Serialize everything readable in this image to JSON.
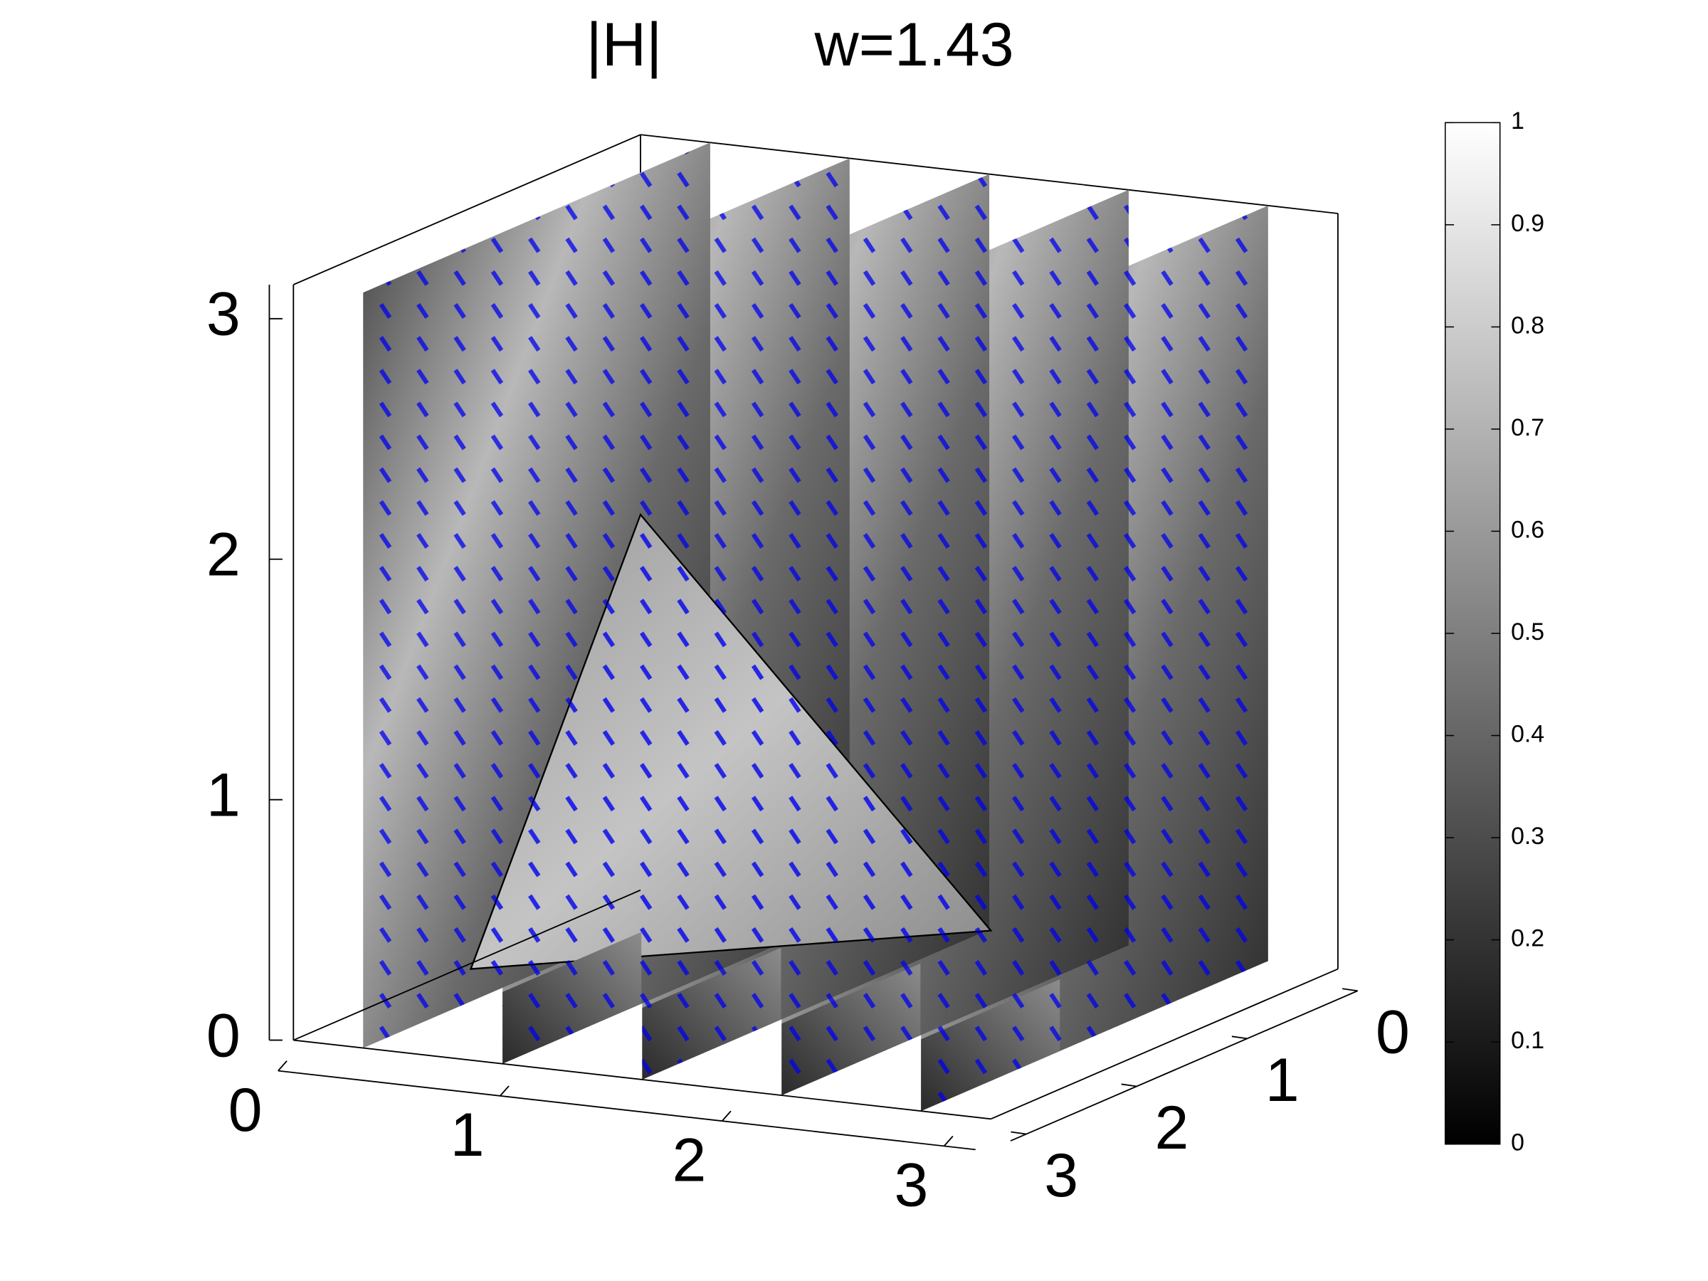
{
  "chart_data": {
    "type": "slice",
    "title": "|H|",
    "subtitle": "w=1.43",
    "xlim": [
      0,
      3.1416
    ],
    "ylim": [
      0,
      3.1416
    ],
    "zlim": [
      0,
      3.1416
    ],
    "xticks": [
      0,
      1,
      2,
      3
    ],
    "yticks": [
      0,
      1,
      2,
      3
    ],
    "zticks": [
      0,
      1,
      2,
      3
    ],
    "slices_x": [
      0.314,
      0.942,
      1.571,
      2.199,
      2.827
    ],
    "colorbar": {
      "clim": [
        0,
        1
      ],
      "ticks": [
        0,
        0.1,
        0.2,
        0.3,
        0.4,
        0.5,
        0.6,
        0.7,
        0.8,
        0.9,
        1
      ],
      "colormap": "gray"
    }
  }
}
